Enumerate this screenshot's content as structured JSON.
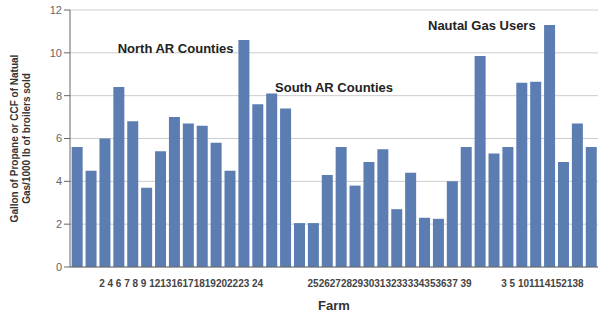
{
  "chart_data": {
    "type": "bar",
    "categories": [
      null,
      null,
      null,
      null,
      null,
      null,
      null,
      "2 4 6 7 8 9 121316171819202223 24",
      null,
      null,
      null,
      null,
      null,
      null,
      null,
      null,
      null,
      null,
      null,
      null,
      null,
      null,
      "252627282930313233334353637 39",
      null,
      null,
      null,
      null,
      null,
      null,
      null,
      null,
      null,
      null,
      "3 5 101114152138",
      null,
      null,
      null,
      null
    ],
    "values": [
      5.6,
      4.5,
      6.0,
      8.4,
      6.8,
      3.7,
      5.4,
      7.0,
      6.7,
      6.6,
      5.8,
      4.5,
      10.6,
      7.6,
      8.1,
      7.4,
      2.05,
      2.05,
      4.3,
      5.6,
      3.8,
      4.9,
      5.5,
      2.7,
      4.4,
      2.3,
      2.25,
      4.0,
      5.6,
      9.85,
      5.3,
      5.6,
      8.6,
      8.65,
      11.3,
      4.9,
      6.7,
      5.6
    ],
    "color": "#5B7DB1",
    "xlabel": "Farm",
    "ylabel": "Gallon of Propane or CCF of Natual\nGas/1000 lb of broilers sold",
    "ylim": [
      0,
      12
    ],
    "yticks": [
      0,
      2,
      4,
      6,
      8,
      10,
      12
    ],
    "grid": true,
    "annotations": [
      "North AR Counties",
      "South AR Counties",
      "Nautal Gas Users"
    ]
  }
}
